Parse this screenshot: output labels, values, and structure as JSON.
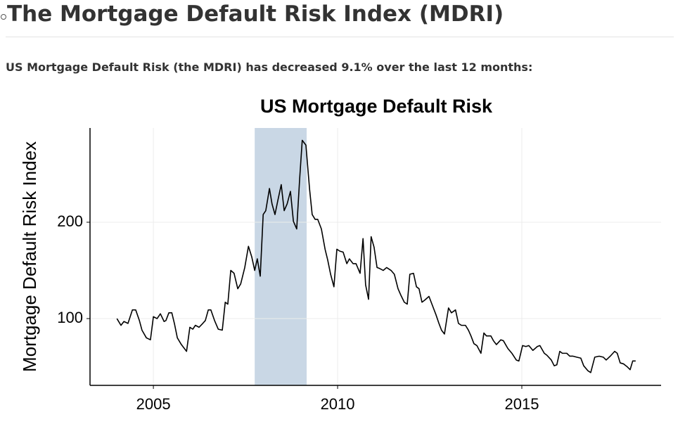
{
  "header": {
    "title": "The Mortgage Default Risk Index (MDRI)"
  },
  "text": "US Mortgage Default Risk (the MDRI) has decreased 9.1% over the last 12 months:",
  "chart_data": {
    "type": "line",
    "title": "US Mortgage Default Risk",
    "ylabel": "Mortgage Default Risk Index",
    "color": "#000000",
    "grid": true,
    "xlim": [
      2003.28,
      2018.78
    ],
    "ylim": [
      30.7,
      297.8
    ],
    "xticks": [
      2005,
      2010,
      2015
    ],
    "yticks": [
      100,
      200
    ],
    "shaded_regions": [
      [
        2007.75,
        2009.16
      ]
    ],
    "shade_color": "#c9d7e5",
    "x": [
      2004.01,
      2004.12,
      2004.2,
      2004.31,
      2004.43,
      2004.52,
      2004.62,
      2004.69,
      2004.81,
      2004.92,
      2005.0,
      2005.1,
      2005.19,
      2005.29,
      2005.34,
      2005.42,
      2005.5,
      2005.57,
      2005.65,
      2005.76,
      2005.9,
      2005.99,
      2006.07,
      2006.14,
      2006.24,
      2006.34,
      2006.41,
      2006.49,
      2006.56,
      2006.66,
      2006.76,
      2006.87,
      2006.95,
      2007.02,
      2007.1,
      2007.19,
      2007.29,
      2007.37,
      2007.48,
      2007.58,
      2007.67,
      2007.75,
      2007.82,
      2007.9,
      2007.98,
      2008.05,
      2008.15,
      2008.22,
      2008.3,
      2008.38,
      2008.47,
      2008.55,
      2008.63,
      2008.72,
      2008.8,
      2008.89,
      2008.97,
      2009.04,
      2009.14,
      2009.24,
      2009.31,
      2009.39,
      2009.46,
      2009.56,
      2009.66,
      2009.73,
      2009.81,
      2009.9,
      2009.98,
      2010.06,
      2010.15,
      2010.25,
      2010.32,
      2010.42,
      2010.5,
      2010.61,
      2010.69,
      2010.76,
      2010.84,
      2010.91,
      2010.99,
      2011.07,
      2011.14,
      2011.24,
      2011.33,
      2011.45,
      2011.54,
      2011.64,
      2011.72,
      2011.81,
      2011.89,
      2011.96,
      2012.06,
      2012.14,
      2012.21,
      2012.29,
      2012.36,
      2012.48,
      2012.56,
      2012.67,
      2012.75,
      2012.82,
      2012.9,
      2013.01,
      2013.09,
      2013.2,
      2013.28,
      2013.36,
      2013.47,
      2013.55,
      2013.62,
      2013.7,
      2013.78,
      2013.89,
      2013.97,
      2014.04,
      2014.16,
      2014.23,
      2014.31,
      2014.43,
      2014.5,
      2014.62,
      2014.73,
      2014.85,
      2014.92,
      2015.02,
      2015.11,
      2015.19,
      2015.3,
      2015.42,
      2015.49,
      2015.61,
      2015.68,
      2015.8,
      2015.88,
      2015.95,
      2016.03,
      2016.1,
      2016.22,
      2016.3,
      2016.39,
      2016.49,
      2016.6,
      2016.68,
      2016.79,
      2016.87,
      2016.98,
      2017.1,
      2017.21,
      2017.29,
      2017.4,
      2017.52,
      2017.59,
      2017.67,
      2017.76,
      2017.86,
      2017.94,
      2018.01,
      2018.09
    ],
    "values": [
      100,
      93,
      97,
      95,
      109,
      109,
      98,
      88,
      80,
      78,
      102,
      100,
      105,
      97,
      98,
      106,
      106,
      95,
      80,
      73,
      66,
      91,
      89,
      93,
      91,
      95,
      98,
      109,
      109,
      98,
      89,
      88,
      117,
      115,
      150,
      147,
      131,
      136,
      153,
      175,
      164,
      150,
      162,
      144,
      208,
      212,
      235,
      219,
      208,
      223,
      239,
      212,
      219,
      232,
      201,
      193,
      245,
      285,
      280,
      234,
      208,
      203,
      203,
      193,
      172,
      161,
      146,
      133,
      172,
      170,
      169,
      157,
      162,
      157,
      157,
      147,
      183,
      135,
      120,
      185,
      174,
      153,
      152,
      150,
      153,
      150,
      146,
      131,
      124,
      117,
      115,
      146,
      147,
      133,
      131,
      117,
      119,
      123,
      115,
      104,
      95,
      88,
      84,
      111,
      106,
      109,
      95,
      93,
      93,
      88,
      82,
      74,
      72,
      64,
      85,
      82,
      82,
      77,
      73,
      78,
      77,
      69,
      64,
      57,
      56,
      72,
      71,
      72,
      67,
      71,
      72,
      64,
      62,
      57,
      51,
      52,
      66,
      64,
      64,
      61,
      61,
      60,
      59,
      51,
      46,
      44,
      60,
      61,
      60,
      57,
      61,
      66,
      64,
      54,
      53,
      50,
      47,
      56,
      56
    ]
  }
}
